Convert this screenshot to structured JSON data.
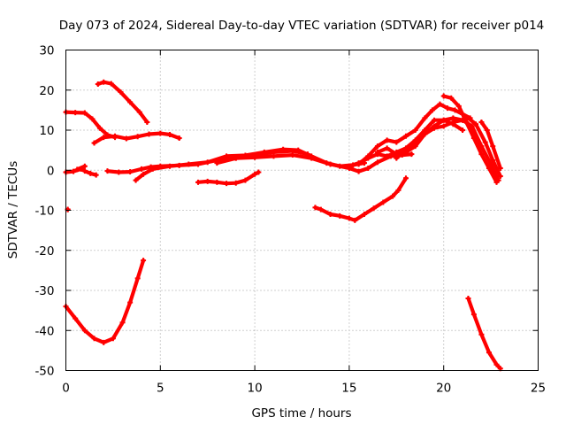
{
  "chart_data": {
    "type": "line",
    "title": "Day 073 of 2024, Sidereal Day-to-day VTEC variation (SDTVAR) for receiver p014",
    "xlabel": "GPS time / hours",
    "ylabel": "SDTVAR / TECUs",
    "xlim": [
      0,
      25
    ],
    "ylim": [
      -50,
      30
    ],
    "xticks": [
      0,
      5,
      10,
      15,
      20,
      25
    ],
    "yticks": [
      -50,
      -40,
      -30,
      -20,
      -10,
      0,
      10,
      20,
      30
    ],
    "xtick_labels": [
      "0",
      "5",
      "10",
      "15",
      "20",
      "25"
    ],
    "ytick_labels": [
      "-50",
      "-40",
      "-30",
      "-20",
      "-10",
      "0",
      "10",
      "20",
      "30"
    ],
    "grid": true,
    "legend": "none",
    "color": "#ff0000",
    "series": [
      {
        "name": "arc-1",
        "points": [
          [
            0,
            14.5
          ],
          [
            0.5,
            14.4
          ],
          [
            1.0,
            14.3
          ],
          [
            1.4,
            12.8
          ],
          [
            1.8,
            10.5
          ],
          [
            2.2,
            8.8
          ],
          [
            2.6,
            8.2
          ]
        ]
      },
      {
        "name": "arc-2",
        "points": [
          [
            1.5,
            6.8
          ],
          [
            2.0,
            8.2
          ],
          [
            2.6,
            8.5
          ],
          [
            3.2,
            7.9
          ],
          [
            3.8,
            8.4
          ],
          [
            4.4,
            9.0
          ],
          [
            5.0,
            9.2
          ],
          [
            5.5,
            8.9
          ],
          [
            6.0,
            8.0
          ]
        ]
      },
      {
        "name": "arc-3",
        "points": [
          [
            1.7,
            21.5
          ],
          [
            2.0,
            22.0
          ],
          [
            2.4,
            21.6
          ],
          [
            2.9,
            19.5
          ],
          [
            3.4,
            17.0
          ],
          [
            3.9,
            14.5
          ],
          [
            4.3,
            12.0
          ]
        ]
      },
      {
        "name": "arc-4",
        "points": [
          [
            0,
            -0.5
          ],
          [
            0.4,
            -0.3
          ],
          [
            0.8,
            0.3
          ],
          [
            1.0,
            -0.2
          ],
          [
            1.3,
            -0.8
          ],
          [
            1.6,
            -1.2
          ]
        ]
      },
      {
        "name": "arc-5",
        "points": [
          [
            0.6,
            0.2
          ],
          [
            1.0,
            1.0
          ]
        ]
      },
      {
        "name": "arc-6",
        "points": [
          [
            2.2,
            -0.2
          ],
          [
            2.8,
            -0.5
          ],
          [
            3.4,
            -0.4
          ],
          [
            4.0,
            0.3
          ],
          [
            4.5,
            0.8
          ],
          [
            5.0,
            1.0
          ],
          [
            6.0,
            1.2
          ],
          [
            7.0,
            1.5
          ],
          [
            8.0,
            2.5
          ],
          [
            9.0,
            3.0
          ],
          [
            10.0,
            3.8
          ],
          [
            11.0,
            4.5
          ],
          [
            12.0,
            4.8
          ],
          [
            12.8,
            4.0
          ]
        ]
      },
      {
        "name": "arc-7",
        "points": [
          [
            3.7,
            -2.5
          ],
          [
            4.1,
            -1.0
          ],
          [
            4.6,
            0.3
          ],
          [
            5.5,
            1.0
          ],
          [
            6.5,
            1.5
          ],
          [
            7.5,
            2.0
          ],
          [
            8.5,
            3.5
          ],
          [
            9.5,
            3.7
          ],
          [
            10.5,
            4.5
          ],
          [
            11.5,
            5.2
          ],
          [
            12.3,
            5.0
          ],
          [
            13.0,
            3.5
          ],
          [
            13.8,
            1.8
          ],
          [
            14.5,
            1.0
          ],
          [
            15.2,
            1.3
          ],
          [
            15.8,
            1.8
          ]
        ]
      },
      {
        "name": "arc-8",
        "points": [
          [
            8.0,
            1.8
          ],
          [
            9.0,
            3.0
          ],
          [
            10.0,
            3.2
          ],
          [
            11.0,
            3.5
          ],
          [
            12.0,
            3.8
          ],
          [
            13.0,
            3.0
          ],
          [
            14.0,
            1.5
          ],
          [
            15.0,
            0.5
          ],
          [
            15.5,
            -0.3
          ],
          [
            16.0,
            0.5
          ],
          [
            16.5,
            2.0
          ],
          [
            17.2,
            3.5
          ],
          [
            17.8,
            3.8
          ],
          [
            18.3,
            4.0
          ]
        ]
      },
      {
        "name": "arc-9",
        "points": [
          [
            7.0,
            -3.0
          ],
          [
            7.5,
            -2.8
          ],
          [
            8.0,
            -3.0
          ],
          [
            8.5,
            -3.3
          ],
          [
            9.0,
            -3.2
          ],
          [
            9.5,
            -2.5
          ],
          [
            10.0,
            -1.0
          ],
          [
            10.2,
            -0.5
          ]
        ]
      },
      {
        "name": "arc-10",
        "points": [
          [
            13.2,
            -9.3
          ],
          [
            13.5,
            -9.8
          ],
          [
            14.0,
            -11.0
          ],
          [
            14.5,
            -11.4
          ],
          [
            15.0,
            -12.0
          ],
          [
            15.3,
            -12.5
          ],
          [
            15.8,
            -11.0
          ],
          [
            16.3,
            -9.5
          ],
          [
            16.8,
            -8.0
          ],
          [
            17.3,
            -6.5
          ],
          [
            17.6,
            -5.0
          ],
          [
            18.0,
            -2.0
          ]
        ]
      },
      {
        "name": "arc-11",
        "points": [
          [
            15.0,
            1.0
          ],
          [
            15.5,
            1.8
          ],
          [
            16.0,
            3.0
          ],
          [
            16.5,
            4.0
          ],
          [
            17.0,
            3.5
          ],
          [
            17.5,
            4.5
          ],
          [
            18.0,
            5.5
          ],
          [
            18.5,
            7.5
          ],
          [
            19.0,
            10.0
          ],
          [
            19.5,
            12.5
          ],
          [
            20.0,
            12.5
          ],
          [
            20.5,
            11.5
          ],
          [
            21.0,
            10.0
          ]
        ]
      },
      {
        "name": "arc-12",
        "points": [
          [
            15.5,
            1.5
          ],
          [
            16.0,
            3.5
          ],
          [
            16.5,
            6.0
          ],
          [
            17.0,
            7.5
          ],
          [
            17.5,
            7.0
          ],
          [
            18.0,
            8.5
          ],
          [
            18.5,
            10.0
          ],
          [
            19.0,
            13.0
          ],
          [
            19.4,
            15.0
          ],
          [
            19.8,
            16.5
          ],
          [
            20.2,
            15.5
          ],
          [
            20.6,
            15.0
          ],
          [
            21.0,
            14.0
          ],
          [
            21.4,
            13.0
          ]
        ]
      },
      {
        "name": "arc-13",
        "points": [
          [
            16.5,
            4.5
          ],
          [
            17.0,
            5.5
          ],
          [
            17.5,
            4.0
          ],
          [
            18.0,
            4.5
          ],
          [
            18.5,
            6.0
          ],
          [
            19.0,
            9.0
          ],
          [
            19.5,
            10.5
          ],
          [
            20.0,
            11.0
          ],
          [
            20.5,
            12.0
          ],
          [
            21.0,
            12.5
          ],
          [
            21.3,
            13.0
          ],
          [
            21.7,
            11.5
          ],
          [
            22.2,
            7.0
          ],
          [
            22.6,
            2.5
          ],
          [
            23.0,
            -1.5
          ]
        ]
      },
      {
        "name": "arc-14",
        "points": [
          [
            17.5,
            3.0
          ],
          [
            18.0,
            5.0
          ],
          [
            18.5,
            7.0
          ],
          [
            19.0,
            9.0
          ],
          [
            19.5,
            11.0
          ],
          [
            20.0,
            12.5
          ],
          [
            20.5,
            13.0
          ],
          [
            21.0,
            12.5
          ],
          [
            21.5,
            11.0
          ],
          [
            22.0,
            6.0
          ],
          [
            22.5,
            1.5
          ],
          [
            22.9,
            -2.5
          ]
        ]
      },
      {
        "name": "arc-15",
        "points": [
          [
            20.0,
            18.5
          ],
          [
            20.4,
            18.0
          ],
          [
            20.8,
            16.0
          ],
          [
            21.2,
            12.0
          ],
          [
            21.6,
            8.0
          ],
          [
            22.0,
            4.0
          ],
          [
            22.4,
            0.5
          ],
          [
            22.8,
            -3.0
          ]
        ]
      },
      {
        "name": "arc-16",
        "points": [
          [
            22.0,
            12.0
          ],
          [
            22.3,
            10.0
          ],
          [
            22.6,
            6.0
          ],
          [
            23.0,
            0.5
          ]
        ]
      },
      {
        "name": "arc-17",
        "points": [
          [
            0,
            -34.0
          ],
          [
            0.5,
            -37.0
          ],
          [
            1.0,
            -40.0
          ],
          [
            1.5,
            -42.0
          ],
          [
            2.0,
            -43.0
          ],
          [
            2.5,
            -42.0
          ],
          [
            3.0,
            -38.0
          ],
          [
            3.4,
            -33.0
          ],
          [
            3.8,
            -27.0
          ],
          [
            4.1,
            -22.5
          ]
        ]
      },
      {
        "name": "arc-18",
        "points": [
          [
            21.3,
            -32.0
          ],
          [
            21.6,
            -36.0
          ],
          [
            22.0,
            -41.0
          ],
          [
            22.4,
            -45.5
          ],
          [
            22.8,
            -48.5
          ],
          [
            23.0,
            -49.5
          ]
        ]
      },
      {
        "name": "point-19",
        "points": [
          [
            0.1,
            -9.8
          ],
          [
            0.1,
            -9.8
          ]
        ]
      }
    ]
  }
}
